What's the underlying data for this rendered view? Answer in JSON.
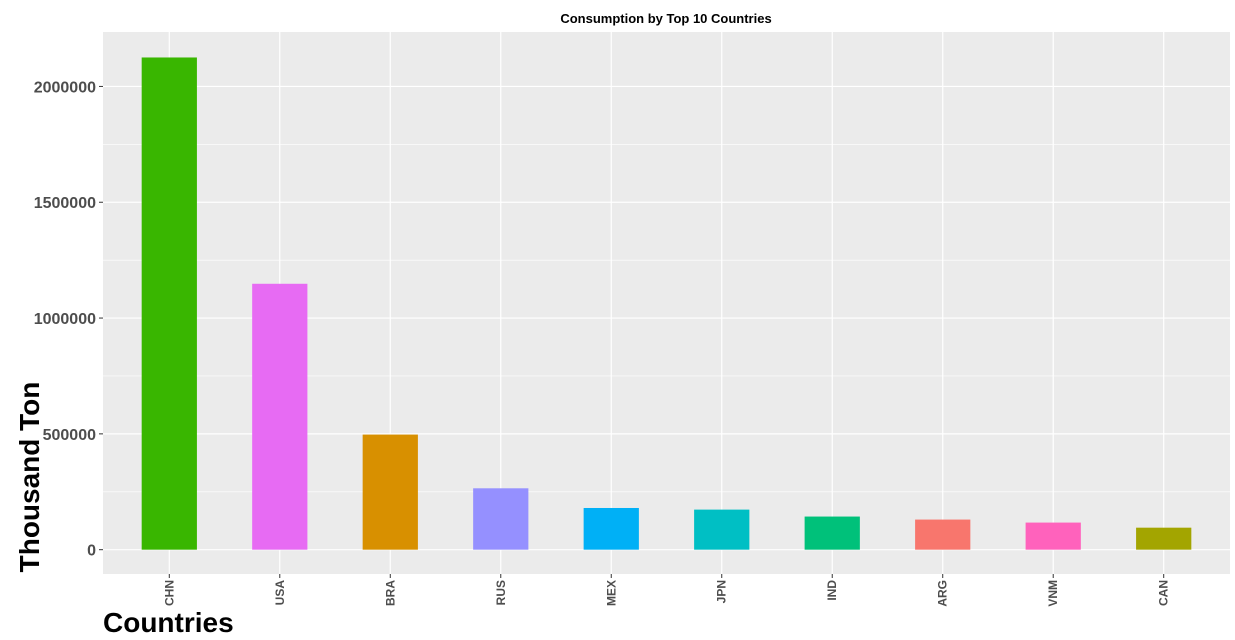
{
  "chart_data": {
    "type": "bar",
    "title": "Consumption by Top 10 Countries",
    "xlabel": "Countries",
    "ylabel": "Thousand Ton",
    "categories": [
      "CHN",
      "USA",
      "BRA",
      "RUS",
      "MEX",
      "JPN",
      "IND",
      "ARG",
      "VNM",
      "CAN"
    ],
    "values": [
      2125000,
      1148000,
      497000,
      265000,
      180000,
      173000,
      143000,
      130000,
      117000,
      95000
    ],
    "colors": [
      "#39B600",
      "#E76BF3",
      "#D89000",
      "#9590FF",
      "#00B0F6",
      "#00BFC4",
      "#00C17A",
      "#F8766D",
      "#FF62BC",
      "#A3A500"
    ],
    "ylim": [
      -105000,
      2235000
    ],
    "yticks": [
      0,
      500000,
      1000000,
      1500000,
      2000000
    ],
    "ytick_labels": [
      "0",
      "500000",
      "1000000",
      "1500000",
      "2000000"
    ],
    "grid": true,
    "panel_background": "#EBEBEB",
    "grid_color": "#FFFFFF",
    "legend": "none"
  }
}
